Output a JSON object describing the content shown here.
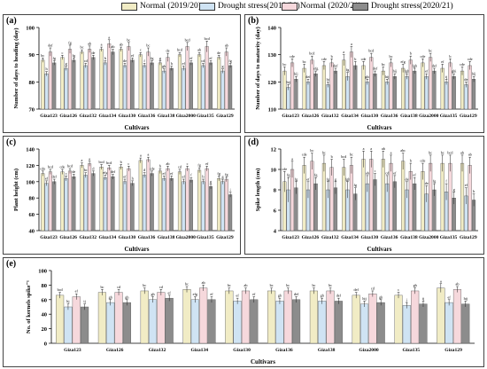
{
  "legend": [
    {
      "label": "Normal (2019/20)",
      "color": "#f1ecc5"
    },
    {
      "label": "Drought stress(2019/20)",
      "color": "#cfe3f3"
    },
    {
      "label": "Normal (2020/21)",
      "color": "#f6d8dc"
    },
    {
      "label": "Drought stress(2020/21)",
      "color": "#8c8c8c"
    }
  ],
  "chart_data": [
    {
      "type": "bar",
      "panel_label": "(a)",
      "ylabel": "Number of days to heading (day)",
      "xlabel": "Cultivars",
      "ylim": [
        70,
        100
      ],
      "yticks": [
        70,
        80,
        90,
        100
      ],
      "categories": [
        "Giza123",
        "Giza126",
        "Giza132",
        "Giza134",
        "Giza130",
        "Giza136",
        "Giza138",
        "Giza2000",
        "Giza135",
        "Giza129"
      ],
      "series": [
        {
          "name": "Normal (2019/20)",
          "values": [
            88,
            89,
            91,
            92,
            92,
            90,
            87,
            90,
            90,
            89
          ]
        },
        {
          "name": "Drought stress(2019/20)",
          "values": [
            83,
            85,
            86,
            87,
            86,
            86,
            84,
            85,
            86,
            84
          ]
        },
        {
          "name": "Normal (2020/21)",
          "values": [
            91,
            92,
            92,
            94,
            93,
            91,
            89,
            93,
            93,
            91
          ]
        },
        {
          "name": "Drought stress(2020/21)",
          "values": [
            87,
            88,
            89,
            91,
            88,
            87,
            85,
            87,
            87,
            86
          ]
        }
      ],
      "errors": [
        [
          0.8,
          0.8,
          0.8,
          0.8,
          0.8,
          0.8,
          0.8,
          0.8,
          0.8,
          0.8
        ],
        [
          0.8,
          0.8,
          0.8,
          0.8,
          0.8,
          0.8,
          0.8,
          0.8,
          0.8,
          0.8
        ],
        [
          1.5,
          1.5,
          1.2,
          1.5,
          1.5,
          1.5,
          1.5,
          1.5,
          2.0,
          1.5
        ],
        [
          0.8,
          0.8,
          0.8,
          1.0,
          0.8,
          0.8,
          0.8,
          0.8,
          0.8,
          0.8
        ]
      ],
      "letters": [
        [
          "bc",
          "c",
          "bc",
          "a",
          "ab",
          "c",
          "g",
          "bcd",
          "ab",
          "de"
        ],
        [
          "h",
          "g",
          "cd",
          "b",
          "de",
          "f",
          "gh",
          "ef",
          "cd",
          "g"
        ],
        [
          "def",
          "fg",
          "ab",
          "a",
          "bc",
          "bc",
          "de",
          "bcd",
          "bcd",
          "ab"
        ],
        [
          "fg",
          "fg",
          "de",
          "ab",
          "ef",
          "fg",
          "h",
          "ef",
          "ef",
          "fg"
        ]
      ]
    },
    {
      "type": "bar",
      "panel_label": "(b)",
      "ylabel": "Number of days to maturity (day)",
      "xlabel": "Cultivars",
      "ylim": [
        110,
        140
      ],
      "yticks": [
        110,
        120,
        130,
        140
      ],
      "categories": [
        "Giza123",
        "Giza126",
        "Giza132",
        "Giza134",
        "Giza130",
        "Giza136",
        "Giza138",
        "Giza2000",
        "Giza135",
        "Giza129"
      ],
      "series": [
        {
          "name": "Normal (2019/20)",
          "values": [
            124,
            125,
            126,
            128,
            126,
            124,
            125,
            127,
            125,
            124
          ]
        },
        {
          "name": "Drought stress(2019/20)",
          "values": [
            118,
            120,
            119,
            122,
            120,
            120,
            122,
            122,
            120,
            119
          ]
        },
        {
          "name": "Normal (2020/21)",
          "values": [
            127,
            128,
            127,
            131,
            129,
            127,
            128,
            129,
            127,
            126
          ]
        },
        {
          "name": "Drought stress(2020/21)",
          "values": [
            121,
            123,
            124,
            126,
            123,
            122,
            124,
            124,
            122,
            121
          ]
        }
      ],
      "errors": [
        [
          1.5,
          1.5,
          1.5,
          2.0,
          1.5,
          1.5,
          1.5,
          1.5,
          1.5,
          1.5
        ],
        [
          1.0,
          1.0,
          1.0,
          1.5,
          1.0,
          1.0,
          1.0,
          1.0,
          1.0,
          1.0
        ],
        [
          1.5,
          1.5,
          1.5,
          2.0,
          1.5,
          1.5,
          1.5,
          1.5,
          1.5,
          1.5
        ],
        [
          1.0,
          1.0,
          1.0,
          1.5,
          1.0,
          1.0,
          1.0,
          1.0,
          1.0,
          1.0
        ]
      ],
      "letters": [
        [
          "bc",
          "bc",
          "cde",
          "a",
          "cde",
          "bc",
          "efg",
          "cde",
          "ef",
          "cde"
        ],
        [
          "hij",
          "def",
          "hi",
          "fg",
          "ghi",
          "hij",
          "fgh",
          "ef",
          "ij",
          "de"
        ],
        [
          "cde",
          "bcd",
          "b",
          "a",
          "bcd",
          "bc",
          "b",
          "bc",
          "b",
          "cde"
        ],
        [
          "kij",
          "efg",
          "def",
          "b",
          "def",
          "hij",
          "fgh",
          "def",
          "ghi",
          "hij"
        ]
      ]
    },
    {
      "type": "bar",
      "panel_label": "(c)",
      "ylabel": "Plant height (cm)",
      "xlabel": "Cultivars",
      "ylim": [
        40,
        140
      ],
      "yticks": [
        40,
        60,
        80,
        100,
        120,
        140
      ],
      "categories": [
        "Giza123",
        "Giza126",
        "Giza132",
        "Giza134",
        "Giza130",
        "Giza136",
        "Giza138",
        "Giza2000",
        "Giza135",
        "Giza129"
      ],
      "series": [
        {
          "name": "Normal (2019/20)",
          "values": [
            110,
            112,
            120,
            118,
            118,
            126,
            113,
            112,
            114,
            104
          ]
        },
        {
          "name": "Drought stress(2019/20)",
          "values": [
            98,
            104,
            108,
            105,
            100,
            108,
            104,
            100,
            100,
            100
          ]
        },
        {
          "name": "Normal (2020/21)",
          "values": [
            112,
            113,
            122,
            117,
            116,
            127,
            116,
            116,
            116,
            103
          ]
        },
        {
          "name": "Drought stress(2020/21)",
          "values": [
            100,
            106,
            110,
            106,
            98,
            110,
            104,
            102,
            94,
            84
          ]
        }
      ],
      "errors": [
        [
          3,
          3,
          3,
          3,
          3,
          3,
          3,
          3,
          3,
          3
        ],
        [
          3,
          3,
          3,
          3,
          3,
          3,
          3,
          3,
          3,
          3
        ],
        [
          3,
          3,
          3,
          3,
          3,
          3,
          3,
          3,
          3,
          3
        ],
        [
          3,
          3,
          3,
          3,
          3,
          3,
          3,
          3,
          3,
          3
        ]
      ],
      "letters": [
        [
          "cde",
          "cde",
          "a",
          "bcd",
          "b",
          "a",
          "b",
          "cd",
          "fg",
          "fg"
        ],
        [
          "ef",
          "c",
          "bc",
          "efg",
          "ef",
          "d",
          "ef",
          "ef",
          "b",
          "g"
        ],
        [
          "bcd",
          "bcd",
          "a",
          "bcd",
          "c",
          "a",
          "ab",
          "c",
          "ef",
          "fg"
        ],
        [
          "def",
          "de",
          "d",
          "def",
          "h",
          "cde",
          "ef",
          "f",
          "g",
          "i"
        ]
      ]
    },
    {
      "type": "bar",
      "panel_label": "(d)",
      "ylabel": "Spike length (cm)",
      "xlabel": "Cultivars",
      "ylim": [
        4,
        12
      ],
      "yticks": [
        4,
        6,
        8,
        10,
        12
      ],
      "categories": [
        "Giza123",
        "Giza126",
        "Giza132",
        "Giza134",
        "Giza130",
        "Giza136",
        "Giza138",
        "Giza2000",
        "Giza135",
        "Giza129"
      ],
      "series": [
        {
          "name": "Normal (2019/20)",
          "values": [
            8.8,
            10.4,
            10.6,
            10.2,
            11.0,
            11.0,
            10.8,
            9.8,
            10.6,
            10.6
          ]
        },
        {
          "name": "Drought stress(2019/20)",
          "values": [
            8.0,
            8.0,
            8.0,
            8.0,
            8.6,
            8.6,
            8.0,
            7.6,
            7.8,
            7.4
          ]
        },
        {
          "name": "Normal (2020/21)",
          "values": [
            10.0,
            10.8,
            10.2,
            10.4,
            11.0,
            10.6,
            9.8,
            10.6,
            10.6,
            10.4
          ]
        },
        {
          "name": "Drought stress(2020/21)",
          "values": [
            8.2,
            8.6,
            8.2,
            7.6,
            9.0,
            8.8,
            8.6,
            8.0,
            7.2,
            7.0
          ]
        }
      ],
      "errors": [
        [
          1.0,
          0.8,
          0.8,
          0.8,
          0.8,
          0.8,
          0.8,
          0.8,
          0.8,
          0.8
        ],
        [
          1.2,
          0.8,
          0.8,
          0.8,
          0.8,
          0.8,
          0.8,
          0.8,
          0.8,
          0.8
        ],
        [
          0.8,
          0.8,
          0.8,
          0.8,
          0.8,
          0.8,
          0.8,
          0.8,
          0.8,
          0.8
        ],
        [
          0.6,
          0.6,
          0.6,
          0.6,
          0.6,
          0.6,
          0.6,
          0.6,
          0.6,
          0.6
        ]
      ],
      "letters": [
        [
          "cde",
          "cde",
          "bc",
          "bcd",
          "a",
          "ab",
          "abc",
          "cde",
          "bc",
          "ab"
        ],
        [
          "fg",
          "ef",
          "fg",
          "fgh",
          "ab",
          "cd",
          "de",
          "de",
          "f",
          "ef"
        ],
        [
          "a",
          "bc",
          "b",
          "bc",
          "a",
          "a",
          "b",
          "bc",
          "bcd",
          "ab"
        ],
        [
          "fg",
          "fg",
          "g",
          "fg",
          "c",
          "ef",
          "ef",
          "fg",
          "g",
          "h"
        ]
      ]
    },
    {
      "type": "bar",
      "panel_label": "(e)",
      "ylabel": "No. of kernels spike⁻¹",
      "xlabel": "Cultivars",
      "ylim": [
        0,
        100
      ],
      "yticks": [
        0,
        20,
        40,
        60,
        80,
        100
      ],
      "categories": [
        "Giza123",
        "Giza126",
        "Giza132",
        "Giza134",
        "Giza130",
        "Giza136",
        "Giza138",
        "Giza2000",
        "Giza135",
        "Giza129"
      ],
      "series": [
        {
          "name": "Normal (2019/20)",
          "values": [
            66,
            70,
            72,
            74,
            72,
            72,
            72,
            66,
            66,
            76
          ]
        },
        {
          "name": "Drought stress(2019/20)",
          "values": [
            50,
            56,
            60,
            60,
            58,
            58,
            58,
            54,
            52,
            56
          ]
        },
        {
          "name": "Normal (2020/21)",
          "values": [
            64,
            70,
            70,
            76,
            72,
            72,
            72,
            68,
            72,
            74
          ]
        },
        {
          "name": "Drought stress(2020/21)",
          "values": [
            50,
            56,
            62,
            60,
            60,
            60,
            58,
            56,
            54,
            54
          ]
        }
      ],
      "errors": [
        [
          4,
          4,
          4,
          4,
          4,
          4,
          4,
          4,
          4,
          6
        ],
        [
          4,
          4,
          4,
          4,
          4,
          4,
          4,
          4,
          4,
          4
        ],
        [
          4,
          4,
          4,
          4,
          4,
          4,
          4,
          4,
          4,
          4
        ],
        [
          4,
          4,
          4,
          4,
          4,
          4,
          4,
          4,
          4,
          4
        ]
      ],
      "letters": [
        [
          "bcd",
          "bc",
          "bc",
          "bc",
          "bc",
          "bc",
          "bc",
          "def",
          "c",
          "a"
        ],
        [
          "hj",
          "gh",
          "gh",
          "efg",
          "ef",
          "gh",
          "gh",
          "hij",
          "j",
          "ef"
        ],
        [
          "ef",
          "cd",
          "cd",
          "ab",
          "ab",
          "bc",
          "bc",
          "cd",
          "gh",
          "ab"
        ],
        [
          "ij",
          "gh",
          "ef",
          "ef",
          "ef",
          "def",
          "def",
          "gh",
          "ij",
          "hij"
        ]
      ]
    }
  ]
}
